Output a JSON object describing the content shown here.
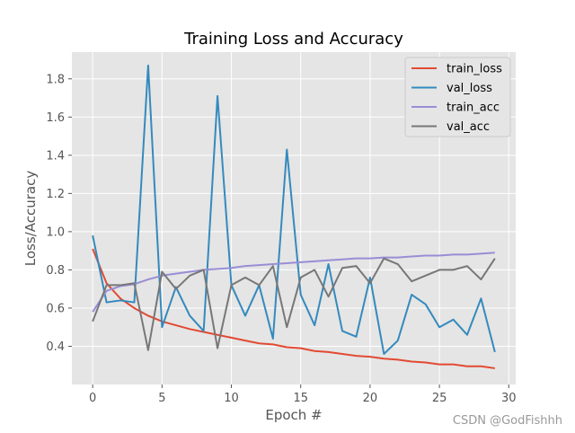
{
  "watermark": "CSDN @GodFishhh",
  "chart_data": {
    "type": "line",
    "title": "Training Loss and Accuracy",
    "xlabel": "Epoch #",
    "ylabel": "Loss/Accuracy",
    "xlim": [
      -1.5,
      30.5
    ],
    "ylim": [
      0.2,
      1.94
    ],
    "xticks": [
      0,
      5,
      10,
      15,
      20,
      25,
      30
    ],
    "yticks": [
      0.4,
      0.6,
      0.8,
      1.0,
      1.2,
      1.4,
      1.6,
      1.8
    ],
    "grid": true,
    "legend_position": "top-right",
    "x": [
      0,
      1,
      2,
      3,
      4,
      5,
      6,
      7,
      8,
      9,
      10,
      11,
      12,
      13,
      14,
      15,
      16,
      17,
      18,
      19,
      20,
      21,
      22,
      23,
      24,
      25,
      26,
      27,
      28,
      29
    ],
    "series": [
      {
        "name": "train_loss",
        "color": "#E24A33",
        "values": [
          0.91,
          0.73,
          0.65,
          0.6,
          0.56,
          0.53,
          0.51,
          0.49,
          0.475,
          0.46,
          0.445,
          0.43,
          0.415,
          0.41,
          0.395,
          0.39,
          0.375,
          0.37,
          0.36,
          0.35,
          0.345,
          0.335,
          0.33,
          0.32,
          0.315,
          0.305,
          0.305,
          0.295,
          0.295,
          0.285
        ]
      },
      {
        "name": "val_loss",
        "color": "#348ABD",
        "values": [
          0.98,
          0.63,
          0.64,
          0.63,
          1.87,
          0.5,
          0.71,
          0.56,
          0.48,
          1.71,
          0.72,
          0.56,
          0.72,
          0.44,
          1.43,
          0.67,
          0.51,
          0.83,
          0.48,
          0.45,
          0.76,
          0.36,
          0.43,
          0.67,
          0.62,
          0.5,
          0.54,
          0.46,
          0.65,
          0.37
        ]
      },
      {
        "name": "train_acc",
        "color": "#988ED5",
        "values": [
          0.58,
          0.69,
          0.715,
          0.725,
          0.75,
          0.77,
          0.78,
          0.79,
          0.8,
          0.805,
          0.81,
          0.82,
          0.825,
          0.83,
          0.835,
          0.84,
          0.845,
          0.85,
          0.855,
          0.86,
          0.86,
          0.865,
          0.865,
          0.87,
          0.875,
          0.875,
          0.88,
          0.88,
          0.885,
          0.89
        ]
      },
      {
        "name": "val_acc",
        "color": "#777777",
        "values": [
          0.53,
          0.72,
          0.72,
          0.73,
          0.38,
          0.79,
          0.7,
          0.77,
          0.8,
          0.39,
          0.72,
          0.76,
          0.72,
          0.82,
          0.5,
          0.76,
          0.8,
          0.66,
          0.81,
          0.82,
          0.73,
          0.86,
          0.83,
          0.74,
          0.77,
          0.8,
          0.8,
          0.82,
          0.75,
          0.86
        ]
      }
    ]
  }
}
